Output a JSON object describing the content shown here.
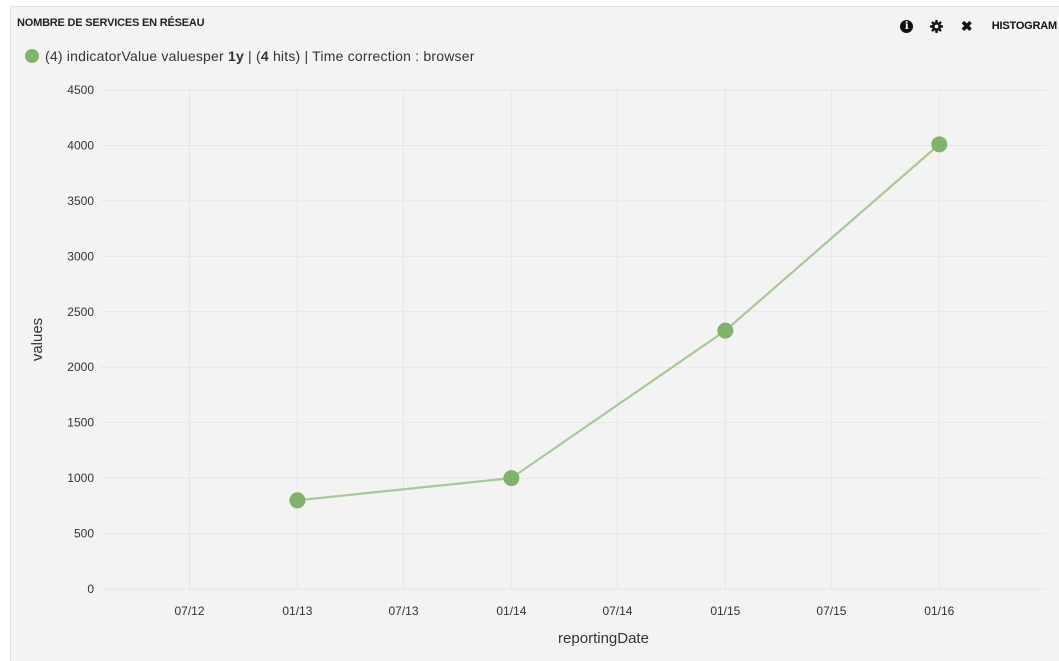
{
  "panel": {
    "title": "NOMBRE DE SERVICES EN RÉSEAU",
    "toolbar": {
      "info_icon": "info-circle-icon",
      "settings_icon": "gear-icon",
      "close_icon": "close-icon",
      "close_glyph": "✖",
      "histogram_label": "HISTOGRAM"
    }
  },
  "legend": {
    "count": "(4)",
    "text_before": " indicatorValue valuesper ",
    "interval": "1y",
    "text_middle": " | (",
    "hits": "4",
    "text_after": " hits) | Time correction : browser",
    "color": "#7fb26a"
  },
  "chart_data": {
    "type": "line",
    "title": "",
    "xlabel": "reportingDate",
    "ylabel": "values",
    "x_tick_labels": [
      "07/12",
      "01/13",
      "07/13",
      "01/14",
      "07/14",
      "01/15",
      "07/15",
      "01/16"
    ],
    "y_ticks": [
      0,
      500,
      1000,
      1500,
      2000,
      2500,
      3000,
      3500,
      4000,
      4500
    ],
    "ylim": [
      0,
      4500
    ],
    "xlim": [
      "2012-02-01",
      "2016-07-01"
    ],
    "grid": true,
    "legend_position": "top-left",
    "series": [
      {
        "color": "#7fb26a",
        "x": [
          "2013-01-01",
          "2014-01-01",
          "2015-01-01",
          "2016-01-01"
        ],
        "y": [
          800,
          1000,
          2330,
          4010
        ]
      }
    ]
  }
}
